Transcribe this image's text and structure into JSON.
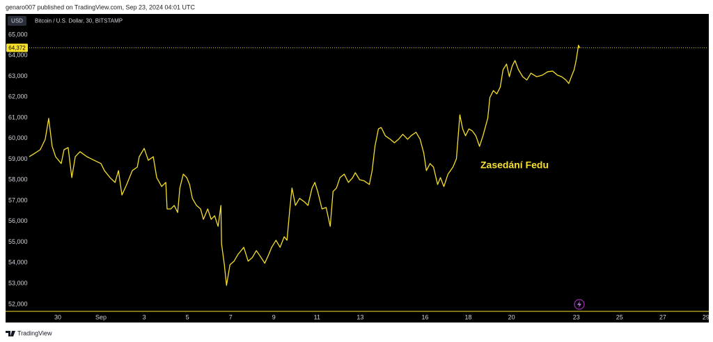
{
  "header": {
    "byline": "genaro007 published on TradingView.com, Sep 23, 2024 04:01 UTC"
  },
  "chart_data": {
    "type": "line",
    "currency": "USD",
    "title": "Bitcoin / U.S. Dollar, 30, BITSTAMP",
    "annotation": "Zasedání Fedu",
    "color": "#f7e02c",
    "grid": false,
    "price_line": {
      "value": 64372,
      "label": "64,372"
    },
    "x": [
      28.68,
      28.94,
      29.19,
      29.42,
      29.58,
      29.74,
      29.9,
      30.16,
      30.29,
      30.48,
      30.65,
      30.81,
      31.03,
      31.35,
      31.68,
      32.0,
      32.16,
      32.42,
      32.65,
      32.81,
      32.97,
      33.19,
      33.45,
      33.68,
      33.77,
      34.0,
      34.19,
      34.42,
      34.58,
      34.81,
      35.0,
      35.06,
      35.23,
      35.39,
      35.55,
      35.65,
      35.81,
      35.97,
      36.1,
      36.23,
      36.42,
      36.61,
      36.74,
      36.94,
      37.1,
      37.26,
      37.42,
      37.55,
      37.58,
      37.71,
      37.81,
      37.97,
      38.16,
      38.35,
      38.61,
      38.81,
      39.0,
      39.19,
      39.35,
      39.58,
      39.77,
      39.9,
      40.1,
      40.29,
      40.48,
      40.61,
      40.74,
      40.84,
      41.0,
      41.19,
      41.42,
      41.58,
      41.77,
      41.9,
      42.03,
      42.23,
      42.42,
      42.61,
      42.74,
      42.9,
      43.06,
      43.26,
      43.45,
      43.65,
      43.77,
      43.97,
      44.19,
      44.42,
      44.55,
      44.68,
      44.84,
      44.97,
      45.16,
      45.39,
      45.58,
      45.77,
      45.97,
      46.19,
      46.35,
      46.58,
      46.77,
      46.94,
      47.06,
      47.23,
      47.39,
      47.58,
      47.71,
      47.87,
      48.06,
      48.29,
      48.45,
      48.61,
      48.74,
      48.87,
      49.03,
      49.19,
      49.35,
      49.52,
      49.68,
      49.81,
      49.9,
      50.0,
      50.16,
      50.32,
      50.48,
      50.61,
      50.77,
      50.9,
      51.03,
      51.16,
      51.32,
      51.52,
      51.71,
      51.9,
      52.16,
      52.42,
      52.68,
      52.9,
      53.13,
      53.32,
      53.52,
      53.65,
      53.77,
      53.9,
      54.0,
      54.1,
      54.16
    ],
    "values": [
      59120,
      59290,
      59460,
      59960,
      60970,
      59620,
      59120,
      58790,
      59460,
      59560,
      58110,
      59120,
      59360,
      59120,
      58950,
      58790,
      58450,
      58110,
      57880,
      58450,
      57270,
      57780,
      58450,
      58620,
      59120,
      59520,
      58950,
      59120,
      58110,
      57680,
      57880,
      56600,
      56600,
      56770,
      56430,
      57610,
      58280,
      58110,
      57780,
      57110,
      56770,
      56600,
      56100,
      56600,
      56100,
      56270,
      55760,
      56770,
      54920,
      53910,
      52910,
      53910,
      54080,
      54420,
      54750,
      54080,
      54250,
      54590,
      54350,
      53980,
      54420,
      54750,
      55090,
      54750,
      55260,
      55090,
      56600,
      57610,
      56770,
      57110,
      56940,
      56770,
      57610,
      57880,
      57440,
      56600,
      56670,
      55760,
      57440,
      57610,
      58110,
      58280,
      57880,
      58110,
      58350,
      58010,
      57950,
      57780,
      58450,
      59620,
      60460,
      60530,
      60130,
      59960,
      59790,
      59960,
      60200,
      59960,
      60130,
      60300,
      59960,
      59290,
      58450,
      58790,
      58620,
      57780,
      58110,
      57680,
      58280,
      58620,
      59020,
      61140,
      60460,
      60130,
      60460,
      60360,
      60130,
      59620,
      60130,
      60630,
      60970,
      61980,
      62310,
      62150,
      62480,
      63320,
      63590,
      62980,
      63490,
      63760,
      63320,
      62980,
      62820,
      63150,
      62980,
      63050,
      63220,
      63250,
      63050,
      62980,
      62820,
      62650,
      62980,
      63320,
      63820,
      64500,
      64372
    ],
    "xlim": [
      28.68,
      60.1
    ],
    "xticks": [
      {
        "value": 30,
        "label": "30"
      },
      {
        "value": 32,
        "label": "Sep"
      },
      {
        "value": 34,
        "label": "3"
      },
      {
        "value": 36,
        "label": "5"
      },
      {
        "value": 38,
        "label": "7"
      },
      {
        "value": 40,
        "label": "9"
      },
      {
        "value": 42,
        "label": "11"
      },
      {
        "value": 44,
        "label": "13"
      },
      {
        "value": 47,
        "label": "16"
      },
      {
        "value": 49,
        "label": "18"
      },
      {
        "value": 51,
        "label": "20"
      },
      {
        "value": 54,
        "label": "23"
      },
      {
        "value": 56,
        "label": "25"
      },
      {
        "value": 58,
        "label": "27"
      },
      {
        "value": 60,
        "label": "29"
      }
    ],
    "ylim": [
      51660,
      65940
    ],
    "yticks": [
      {
        "value": 52000,
        "label": "52,000"
      },
      {
        "value": 53000,
        "label": "53,000"
      },
      {
        "value": 54000,
        "label": "54,000"
      },
      {
        "value": 55000,
        "label": "55,000"
      },
      {
        "value": 56000,
        "label": "56,000"
      },
      {
        "value": 57000,
        "label": "57,000"
      },
      {
        "value": 58000,
        "label": "58,000"
      },
      {
        "value": 59000,
        "label": "59,000"
      },
      {
        "value": 60000,
        "label": "60,000"
      },
      {
        "value": 61000,
        "label": "61,000"
      },
      {
        "value": 62000,
        "label": "62,000"
      },
      {
        "value": 63000,
        "label": "63,000"
      },
      {
        "value": 64000,
        "label": "64,000"
      },
      {
        "value": 65000,
        "label": "65,000"
      }
    ]
  },
  "footer": {
    "brand": "TradingView"
  }
}
